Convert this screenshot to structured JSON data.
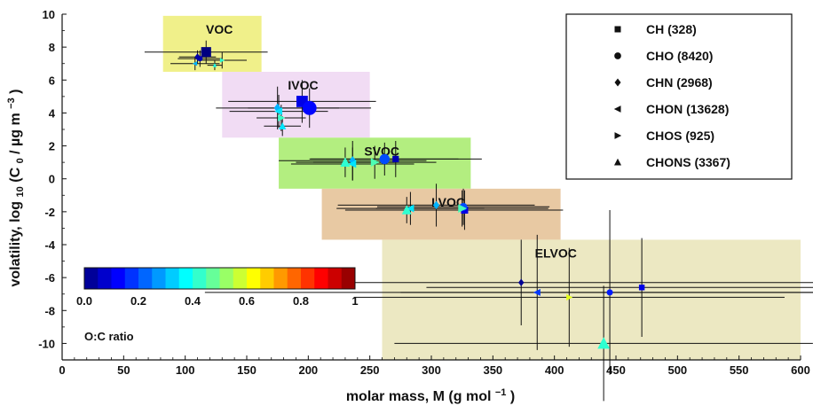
{
  "chart_data": {
    "type": "scatter",
    "xlabel": "molar mass, M (g mol",
    "xlabel_sup": "−1",
    "xlabel_tail": ")",
    "ylabel_main": "volatility, log",
    "ylabel_sub": "10",
    "ylabel_rest": " (C",
    "ylabel_sub2": "0",
    "ylabel_unit": " / µg m",
    "ylabel_sup": "−3",
    "ylabel_tail": ")",
    "xlim": [
      0,
      600
    ],
    "ylim": [
      -11,
      10
    ],
    "x_ticks": [
      0,
      50,
      100,
      150,
      200,
      250,
      300,
      350,
      400,
      450,
      500,
      550,
      600
    ],
    "y_ticks": [
      -10,
      -8,
      -6,
      -4,
      -2,
      0,
      2,
      4,
      6,
      8,
      10
    ],
    "colors": {
      "VOC": "#f0f08a",
      "IVOC": "#f1dcf4",
      "SVOC": "#b3ee80",
      "LVOC": "#e8c9a3",
      "ELVOC": "#ece8c2"
    },
    "regions": [
      {
        "label": "VOC",
        "x": [
          82,
          162
        ],
        "y": [
          6.5,
          9.9
        ]
      },
      {
        "label": "IVOC",
        "x": [
          130,
          250
        ],
        "y": [
          2.5,
          6.5
        ]
      },
      {
        "label": "SVOC",
        "x": [
          176,
          332
        ],
        "y": [
          -0.6,
          2.5
        ]
      },
      {
        "label": "LVOC",
        "x": [
          211,
          405
        ],
        "y": [
          -3.7,
          -0.6
        ]
      },
      {
        "label": "ELVOC",
        "x": [
          260,
          600
        ],
        "y": [
          -11,
          -3.7
        ]
      }
    ],
    "legend": {
      "entries": [
        {
          "label": "CH (328)",
          "marker": "square"
        },
        {
          "label": "CHO (8420)",
          "marker": "circle"
        },
        {
          "label": "CHN (2968)",
          "marker": "diamond"
        },
        {
          "label": "CHON (13628)",
          "marker": "triangle-left"
        },
        {
          "label": "CHOS (925)",
          "marker": "triangle-right"
        },
        {
          "label": "CHONS (3367)",
          "marker": "triangle-up"
        }
      ]
    },
    "colorbar": {
      "label": "O:C ratio",
      "ticks": [
        "0.0",
        "0.2",
        "0.4",
        "0.6",
        "0.8",
        "1"
      ],
      "range": [
        0,
        1
      ]
    },
    "points": [
      {
        "group": "VOC",
        "marker": "square",
        "x": 117,
        "y": 7.7,
        "oc": 0.0,
        "size": 1.4,
        "xerr": 50,
        "yerr": 0.7
      },
      {
        "group": "VOC",
        "marker": "circle",
        "x": 112,
        "y": 7.3,
        "oc": 0.05,
        "size": 0.7,
        "xerr": 18,
        "yerr": 0.5
      },
      {
        "group": "VOC",
        "marker": "diamond",
        "x": 110,
        "y": 7.4,
        "oc": 0.04,
        "size": 0.8,
        "xerr": 15,
        "yerr": 0.4
      },
      {
        "group": "VOC",
        "marker": "triangle-left",
        "x": 108,
        "y": 7.0,
        "oc": 0.3,
        "size": 0.6,
        "xerr": 20,
        "yerr": 0.4
      },
      {
        "group": "VOC",
        "marker": "triangle-right",
        "x": 130,
        "y": 7.2,
        "oc": 0.42,
        "size": 0.6,
        "xerr": 20,
        "yerr": 0.5
      },
      {
        "group": "VOC",
        "marker": "triangle-up",
        "x": 124,
        "y": 6.9,
        "oc": 0.4,
        "size": 0.5,
        "xerr": 6,
        "yerr": 0.3
      },
      {
        "group": "IVOC",
        "marker": "square",
        "x": 195,
        "y": 4.7,
        "oc": 0.1,
        "size": 1.6,
        "xerr": 60,
        "yerr": 1.3
      },
      {
        "group": "IVOC",
        "marker": "circle",
        "x": 201,
        "y": 4.3,
        "oc": 0.13,
        "size": 1.8,
        "xerr": 50,
        "yerr": 1.2
      },
      {
        "group": "IVOC",
        "marker": "diamond",
        "x": 175,
        "y": 4.3,
        "oc": 0.3,
        "size": 1.0,
        "xerr": 50,
        "yerr": 1.3
      },
      {
        "group": "IVOC",
        "marker": "triangle-left",
        "x": 176,
        "y": 4.1,
        "oc": 0.35,
        "size": 1.0,
        "xerr": 40,
        "yerr": 1.0
      },
      {
        "group": "IVOC",
        "marker": "triangle-right",
        "x": 178,
        "y": 3.7,
        "oc": 0.43,
        "size": 0.9,
        "xerr": 20,
        "yerr": 0.8
      },
      {
        "group": "IVOC",
        "marker": "triangle-up",
        "x": 179,
        "y": 3.2,
        "oc": 0.35,
        "size": 0.9,
        "xerr": 15,
        "yerr": 0.6
      },
      {
        "group": "SVOC",
        "marker": "square",
        "x": 271,
        "y": 1.2,
        "oc": 0.05,
        "size": 0.9,
        "xerr": 70,
        "yerr": 1.1
      },
      {
        "group": "SVOC",
        "marker": "circle",
        "x": 262,
        "y": 1.2,
        "oc": 0.2,
        "size": 1.3,
        "xerr": 60,
        "yerr": 1.0
      },
      {
        "group": "SVOC",
        "marker": "diamond",
        "x": 236,
        "y": 1.1,
        "oc": 0.3,
        "size": 1.0,
        "xerr": 60,
        "yerr": 1.2
      },
      {
        "group": "SVOC",
        "marker": "triangle-left",
        "x": 236,
        "y": 0.9,
        "oc": 0.35,
        "size": 1.0,
        "xerr": 50,
        "yerr": 1.0
      },
      {
        "group": "SVOC",
        "marker": "triangle-right",
        "x": 254,
        "y": 1.0,
        "oc": 0.45,
        "size": 1.1,
        "xerr": 50,
        "yerr": 1.0
      },
      {
        "group": "SVOC",
        "marker": "triangle-up",
        "x": 230,
        "y": 1.0,
        "oc": 0.42,
        "size": 1.2,
        "xerr": 40,
        "yerr": 0.9
      },
      {
        "group": "LVOC",
        "marker": "square",
        "x": 327,
        "y": -1.9,
        "oc": 0.1,
        "size": 1.0,
        "xerr": 80,
        "yerr": 1.2
      },
      {
        "group": "LVOC",
        "marker": "circle",
        "x": 326,
        "y": -1.7,
        "oc": 0.2,
        "size": 1.0,
        "xerr": 70,
        "yerr": 1.1
      },
      {
        "group": "LVOC",
        "marker": "diamond",
        "x": 304,
        "y": -1.6,
        "oc": 0.3,
        "size": 0.9,
        "xerr": 80,
        "yerr": 1.3
      },
      {
        "group": "LVOC",
        "marker": "triangle-left",
        "x": 283,
        "y": -1.8,
        "oc": 0.35,
        "size": 1.0,
        "xerr": 60,
        "yerr": 1.0
      },
      {
        "group": "LVOC",
        "marker": "triangle-right",
        "x": 325,
        "y": -1.8,
        "oc": 0.44,
        "size": 1.1,
        "xerr": 70,
        "yerr": 1.1
      },
      {
        "group": "LVOC",
        "marker": "triangle-up",
        "x": 280,
        "y": -1.9,
        "oc": 0.42,
        "size": 1.2,
        "xerr": 50,
        "yerr": 0.8
      },
      {
        "group": "ELVOC",
        "marker": "diamond",
        "x": 373,
        "y": -6.3,
        "oc": 0.02,
        "size": 0.8,
        "xerr": 240,
        "yerr": 2.6
      },
      {
        "group": "ELVOC",
        "marker": "circle",
        "x": 445,
        "y": -6.9,
        "oc": 0.15,
        "size": 0.8,
        "xerr": 170,
        "yerr": 5.0
      },
      {
        "group": "ELVOC",
        "marker": "square",
        "x": 471,
        "y": -6.6,
        "oc": 0.1,
        "size": 0.8,
        "xerr": 175,
        "yerr": 3.0
      },
      {
        "group": "ELVOC",
        "marker": "triangle-left",
        "x": 386,
        "y": -6.9,
        "oc": 0.18,
        "size": 0.9,
        "xerr": 270,
        "yerr": 3.5
      },
      {
        "group": "ELVOC",
        "marker": "triangle-right",
        "x": 412,
        "y": -7.2,
        "oc": 0.6,
        "size": 0.8,
        "xerr": 175,
        "yerr": 3.0
      },
      {
        "group": "ELVOC",
        "marker": "triangle-up",
        "x": 440,
        "y": -10.0,
        "oc": 0.42,
        "size": 1.5,
        "xerr": 170,
        "yerr": 3.5
      }
    ]
  }
}
